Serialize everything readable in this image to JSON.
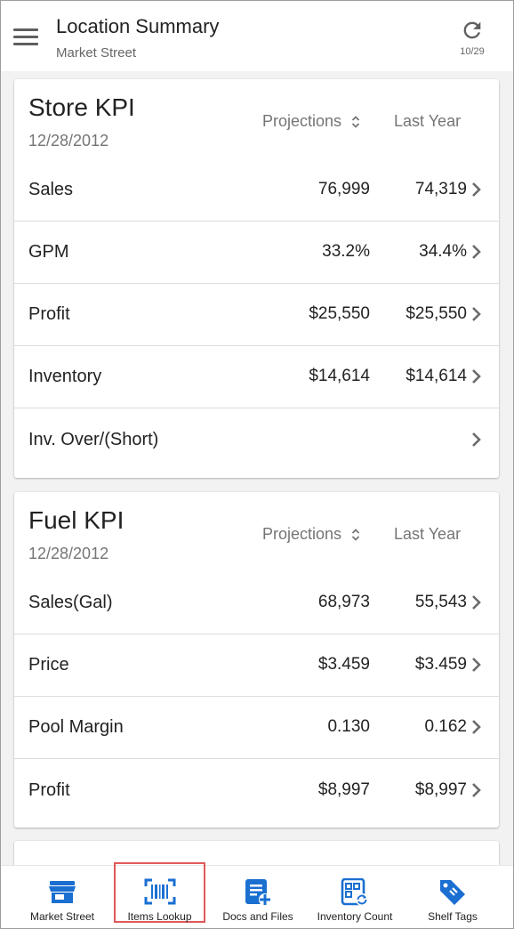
{
  "appbar": {
    "title": "Location Summary",
    "subtitle": "Market Street",
    "refresh_count": "10/29"
  },
  "store_kpi": {
    "title": "Store KPI",
    "date": "12/28/2012",
    "col_projections": "Projections",
    "col_last_year": "Last Year",
    "rows": [
      {
        "label": "Sales",
        "projection": "76,999",
        "last_year": "74,319"
      },
      {
        "label": "GPM",
        "projection": "33.2%",
        "last_year": "34.4%"
      },
      {
        "label": "Profit",
        "projection": "$25,550",
        "last_year": "$25,550"
      },
      {
        "label": "Inventory",
        "projection": "$14,614",
        "last_year": "$14,614"
      },
      {
        "label": "Inv. Over/(Short)",
        "projection": "",
        "last_year": ""
      }
    ]
  },
  "fuel_kpi": {
    "title": "Fuel KPI",
    "date": "12/28/2012",
    "col_projections": "Projections",
    "col_last_year": "Last Year",
    "rows": [
      {
        "label": "Sales(Gal)",
        "projection": "68,973",
        "last_year": "55,543"
      },
      {
        "label": "Price",
        "projection": "$3.459",
        "last_year": "$3.459"
      },
      {
        "label": "Pool Margin",
        "projection": "0.130",
        "last_year": "0.162"
      },
      {
        "label": "Profit",
        "projection": "$8,997",
        "last_year": "$8,997"
      }
    ]
  },
  "bottom_nav": {
    "items": [
      {
        "label": "Market Street",
        "icon": "store-icon"
      },
      {
        "label": "Items Lookup",
        "icon": "barcode-scan-icon",
        "selected": true
      },
      {
        "label": "Docs and Files",
        "icon": "document-add-icon"
      },
      {
        "label": "Inventory Count",
        "icon": "inventory-scan-icon"
      },
      {
        "label": "Shelf Tags",
        "icon": "tag-icon"
      }
    ]
  },
  "colors": {
    "accent_blue": "#1a6fd1",
    "selection_outline": "#e0595a",
    "text_primary": "#222222",
    "text_secondary": "#757575"
  }
}
